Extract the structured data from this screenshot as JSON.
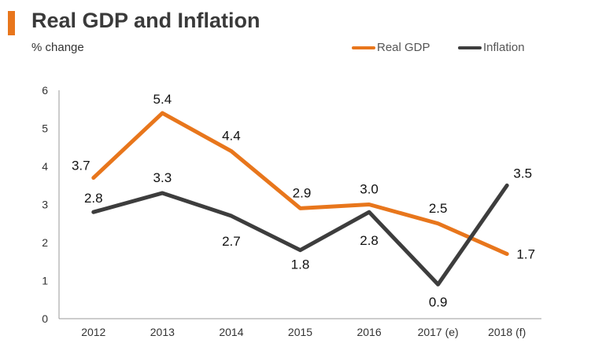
{
  "header": {
    "title": "Real GDP and Inflation",
    "subtitle": "% change"
  },
  "colors": {
    "accent": "#e8761c",
    "gdp": "#e8761c",
    "inflation": "#3d3d3d"
  },
  "chart_data": {
    "type": "line",
    "title": "Real GDP and Inflation",
    "ylabel": "% change",
    "xlabel": "",
    "categories": [
      "2012",
      "2013",
      "2014",
      "2015",
      "2016",
      "2017 (e)",
      "2018 (f)"
    ],
    "ylim": [
      0,
      6
    ],
    "yticks": [
      "0",
      "1",
      "2",
      "3",
      "4",
      "5",
      "6"
    ],
    "legend_position": "top-right",
    "grid": false,
    "series": [
      {
        "name": "Real GDP",
        "color": "#e8761c",
        "values": [
          3.7,
          5.4,
          4.4,
          2.9,
          3.0,
          2.5,
          1.7
        ],
        "labels": [
          "3.7",
          "5.4",
          "4.4",
          "2.9",
          "3.0",
          "2.5",
          "1.7"
        ]
      },
      {
        "name": "Inflation",
        "color": "#3d3d3d",
        "values": [
          2.8,
          3.3,
          2.7,
          1.8,
          2.8,
          0.9,
          3.5
        ],
        "labels": [
          "2.8",
          "3.3",
          "2.7",
          "1.8",
          "2.8",
          "0.9",
          "3.5"
        ]
      }
    ]
  }
}
